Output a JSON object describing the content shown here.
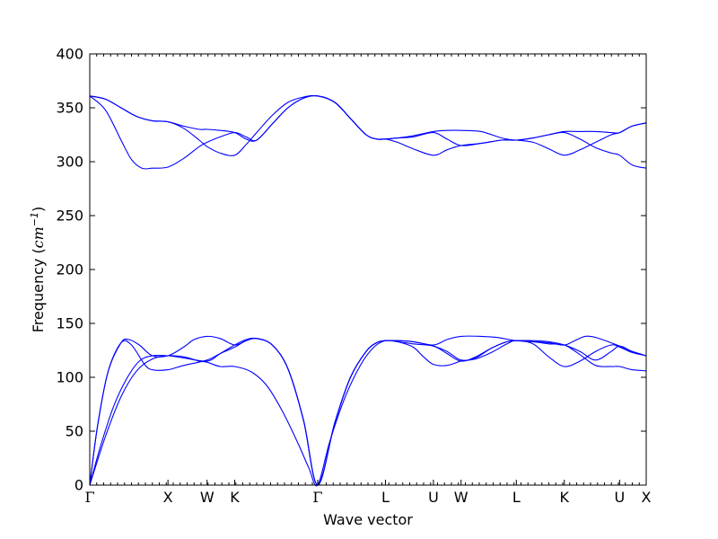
{
  "chart_data": {
    "type": "line",
    "xlabel": "Wave vector",
    "ylabel": "Frequency (cm⁻¹)",
    "ylabel_text": "Frequency (",
    "ylabel_unit": "cm",
    "ylabel_exp": "−1",
    "ylabel_close": ")",
    "ylim": [
      0,
      400
    ],
    "yticks": [
      0,
      50,
      100,
      150,
      200,
      250,
      300,
      350,
      400
    ],
    "xlim": [
      0,
      10.67
    ],
    "high_symmetry_points": [
      {
        "label": "Γ",
        "x": 0.0
      },
      {
        "label": "X",
        "x": 1.5
      },
      {
        "label": "W",
        "x": 2.25
      },
      {
        "label": "K",
        "x": 2.78
      },
      {
        "label": "Γ",
        "x": 4.37
      },
      {
        "label": "L",
        "x": 5.67
      },
      {
        "label": "U",
        "x": 6.59
      },
      {
        "label": "W",
        "x": 7.12
      },
      {
        "label": "L",
        "x": 8.18
      },
      {
        "label": "K",
        "x": 9.1
      },
      {
        "label": "U",
        "x": 10.16
      },
      {
        "label": "X",
        "x": 10.67
      }
    ],
    "series": [
      {
        "values": [
          [
            0,
            0
          ],
          [
            0.3,
            45
          ],
          [
            0.6,
            82
          ],
          [
            0.9,
            106
          ],
          [
            1.2,
            117
          ],
          [
            1.5,
            120
          ],
          [
            1.8,
            119
          ],
          [
            2.1,
            115
          ],
          [
            2.25,
            114
          ],
          [
            2.5,
            110
          ],
          [
            2.78,
            110
          ],
          [
            3.1,
            105
          ],
          [
            3.4,
            92
          ],
          [
            3.7,
            68
          ],
          [
            4.0,
            38
          ],
          [
            4.2,
            16
          ],
          [
            4.37,
            0
          ],
          [
            4.6,
            40
          ],
          [
            4.9,
            82
          ],
          [
            5.2,
            112
          ],
          [
            5.45,
            128
          ],
          [
            5.67,
            134
          ],
          [
            5.9,
            133
          ],
          [
            6.2,
            131
          ],
          [
            6.59,
            129
          ],
          [
            6.85,
            122
          ],
          [
            7.12,
            115
          ],
          [
            7.4,
            119
          ],
          [
            7.7,
            127
          ],
          [
            8.0,
            133
          ],
          [
            8.18,
            134
          ],
          [
            8.5,
            133
          ],
          [
            8.8,
            131
          ],
          [
            9.1,
            130
          ],
          [
            9.4,
            121
          ],
          [
            9.7,
            111
          ],
          [
            10.0,
            110
          ],
          [
            10.16,
            110
          ],
          [
            10.4,
            107
          ],
          [
            10.67,
            106
          ]
        ]
      },
      {
        "values": [
          [
            0,
            0
          ],
          [
            0.2,
            35
          ],
          [
            0.45,
            72
          ],
          [
            0.7,
            98
          ],
          [
            0.95,
            115
          ],
          [
            1.2,
            120
          ],
          [
            1.5,
            120
          ],
          [
            1.8,
            118
          ],
          [
            2.25,
            115
          ],
          [
            2.5,
            122
          ],
          [
            2.78,
            130
          ],
          [
            3.0,
            135
          ],
          [
            3.2,
            136
          ],
          [
            3.5,
            130
          ],
          [
            3.8,
            108
          ],
          [
            4.1,
            60
          ],
          [
            4.37,
            0
          ],
          [
            4.7,
            58
          ],
          [
            5.0,
            100
          ],
          [
            5.3,
            124
          ],
          [
            5.5,
            132
          ],
          [
            5.67,
            134
          ],
          [
            5.9,
            134
          ],
          [
            6.2,
            133
          ],
          [
            6.59,
            129
          ],
          [
            6.85,
            124
          ],
          [
            7.12,
            116
          ],
          [
            7.4,
            118
          ],
          [
            7.7,
            127
          ],
          [
            8.0,
            133
          ],
          [
            8.18,
            134
          ],
          [
            8.5,
            134
          ],
          [
            8.8,
            133
          ],
          [
            9.1,
            130
          ],
          [
            9.4,
            124
          ],
          [
            9.7,
            116
          ],
          [
            10.0,
            124
          ],
          [
            10.16,
            129
          ],
          [
            10.4,
            124
          ],
          [
            10.67,
            120
          ]
        ]
      },
      {
        "values": [
          [
            0,
            0
          ],
          [
            0.15,
            55
          ],
          [
            0.35,
            105
          ],
          [
            0.6,
            132
          ],
          [
            0.8,
            130
          ],
          [
            1.05,
            112
          ],
          [
            1.2,
            107
          ],
          [
            1.5,
            107
          ],
          [
            1.8,
            111
          ],
          [
            2.25,
            116
          ],
          [
            2.5,
            122
          ],
          [
            2.78,
            128
          ],
          [
            3.0,
            134
          ],
          [
            3.2,
            136
          ],
          [
            3.5,
            130
          ],
          [
            3.8,
            108
          ],
          [
            4.1,
            60
          ],
          [
            4.37,
            0
          ],
          [
            4.7,
            58
          ],
          [
            5.0,
            100
          ],
          [
            5.3,
            124
          ],
          [
            5.5,
            132
          ],
          [
            5.67,
            134
          ],
          [
            5.9,
            133
          ],
          [
            6.2,
            128
          ],
          [
            6.4,
            119
          ],
          [
            6.59,
            112
          ],
          [
            6.85,
            111
          ],
          [
            7.12,
            115
          ],
          [
            7.4,
            117
          ],
          [
            7.7,
            123
          ],
          [
            8.0,
            131
          ],
          [
            8.18,
            134
          ],
          [
            8.5,
            131
          ],
          [
            8.8,
            119
          ],
          [
            9.1,
            110
          ],
          [
            9.4,
            115
          ],
          [
            9.7,
            124
          ],
          [
            10.0,
            130
          ],
          [
            10.16,
            128
          ],
          [
            10.4,
            123
          ],
          [
            10.67,
            120
          ]
        ]
      },
      {
        "values": [
          [
            0,
            0
          ],
          [
            0.15,
            55
          ],
          [
            0.35,
            105
          ],
          [
            0.6,
            132
          ],
          [
            0.75,
            135
          ],
          [
            0.95,
            130
          ],
          [
            1.2,
            120
          ],
          [
            1.5,
            120
          ],
          [
            1.8,
            128
          ],
          [
            2.0,
            135
          ],
          [
            2.25,
            138
          ],
          [
            2.5,
            136
          ],
          [
            2.78,
            130
          ],
          [
            3.0,
            134
          ],
          [
            3.2,
            136
          ],
          [
            3.5,
            130
          ],
          [
            3.8,
            108
          ],
          [
            4.1,
            60
          ],
          [
            4.37,
            0
          ],
          [
            4.7,
            58
          ],
          [
            5.0,
            100
          ],
          [
            5.3,
            124
          ],
          [
            5.5,
            132
          ],
          [
            5.67,
            134
          ],
          [
            5.9,
            134
          ],
          [
            6.2,
            133
          ],
          [
            6.59,
            130
          ],
          [
            6.85,
            135
          ],
          [
            7.12,
            138
          ],
          [
            7.5,
            138
          ],
          [
            7.8,
            137
          ],
          [
            8.18,
            134
          ],
          [
            8.5,
            133
          ],
          [
            8.8,
            132
          ],
          [
            9.1,
            130
          ],
          [
            9.3,
            134
          ],
          [
            9.5,
            138
          ],
          [
            9.7,
            137
          ],
          [
            10.0,
            132
          ],
          [
            10.16,
            129
          ],
          [
            10.4,
            124
          ],
          [
            10.67,
            120
          ]
        ]
      },
      {
        "values": [
          [
            0,
            361
          ],
          [
            0.3,
            348
          ],
          [
            0.6,
            320
          ],
          [
            0.8,
            302
          ],
          [
            1.0,
            294
          ],
          [
            1.2,
            294
          ],
          [
            1.5,
            295
          ],
          [
            1.8,
            303
          ],
          [
            2.1,
            314
          ],
          [
            2.25,
            318
          ],
          [
            2.5,
            323
          ],
          [
            2.78,
            327
          ],
          [
            3.0,
            323
          ],
          [
            3.2,
            320
          ],
          [
            3.5,
            335
          ],
          [
            3.8,
            350
          ],
          [
            4.1,
            359
          ],
          [
            4.37,
            361
          ],
          [
            4.7,
            355
          ],
          [
            5.0,
            340
          ],
          [
            5.3,
            325
          ],
          [
            5.5,
            321
          ],
          [
            5.67,
            321
          ],
          [
            5.9,
            322
          ],
          [
            6.2,
            323
          ],
          [
            6.59,
            327
          ],
          [
            6.85,
            321
          ],
          [
            7.12,
            315
          ],
          [
            7.5,
            317
          ],
          [
            7.9,
            320
          ],
          [
            8.18,
            320
          ],
          [
            8.5,
            322
          ],
          [
            8.8,
            325
          ],
          [
            9.1,
            327
          ],
          [
            9.4,
            321
          ],
          [
            9.7,
            313
          ],
          [
            10.0,
            308
          ],
          [
            10.16,
            306
          ],
          [
            10.4,
            297
          ],
          [
            10.67,
            294
          ]
        ]
      },
      {
        "values": [
          [
            0,
            361
          ],
          [
            0.3,
            358
          ],
          [
            0.6,
            350
          ],
          [
            0.9,
            342
          ],
          [
            1.2,
            338
          ],
          [
            1.5,
            337
          ],
          [
            1.8,
            331
          ],
          [
            2.1,
            320
          ],
          [
            2.25,
            314
          ],
          [
            2.5,
            308
          ],
          [
            2.78,
            306
          ],
          [
            3.0,
            316
          ],
          [
            3.2,
            327
          ],
          [
            3.5,
            343
          ],
          [
            3.8,
            355
          ],
          [
            4.1,
            360
          ],
          [
            4.37,
            361
          ],
          [
            4.7,
            355
          ],
          [
            5.0,
            340
          ],
          [
            5.3,
            325
          ],
          [
            5.5,
            321
          ],
          [
            5.67,
            321
          ],
          [
            5.9,
            318
          ],
          [
            6.2,
            312
          ],
          [
            6.59,
            306
          ],
          [
            6.85,
            311
          ],
          [
            7.12,
            315
          ],
          [
            7.5,
            317
          ],
          [
            7.9,
            320
          ],
          [
            8.18,
            320
          ],
          [
            8.5,
            318
          ],
          [
            8.8,
            312
          ],
          [
            9.1,
            306
          ],
          [
            9.4,
            311
          ],
          [
            9.7,
            318
          ],
          [
            10.0,
            325
          ],
          [
            10.16,
            327
          ],
          [
            10.4,
            333
          ],
          [
            10.67,
            336
          ]
        ]
      },
      {
        "values": [
          [
            0,
            361
          ],
          [
            0.3,
            358
          ],
          [
            0.6,
            350
          ],
          [
            0.9,
            342
          ],
          [
            1.2,
            338
          ],
          [
            1.5,
            337
          ],
          [
            1.8,
            333
          ],
          [
            2.1,
            330
          ],
          [
            2.25,
            330
          ],
          [
            2.5,
            329
          ],
          [
            2.78,
            327
          ],
          [
            3.0,
            321
          ],
          [
            3.2,
            320
          ],
          [
            3.5,
            335
          ],
          [
            3.8,
            350
          ],
          [
            4.1,
            359
          ],
          [
            4.37,
            361
          ],
          [
            4.7,
            355
          ],
          [
            5.0,
            340
          ],
          [
            5.3,
            325
          ],
          [
            5.5,
            321
          ],
          [
            5.67,
            321
          ],
          [
            5.9,
            322
          ],
          [
            6.2,
            324
          ],
          [
            6.59,
            328
          ],
          [
            6.85,
            329
          ],
          [
            7.12,
            329
          ],
          [
            7.5,
            328
          ],
          [
            7.9,
            322
          ],
          [
            8.18,
            320
          ],
          [
            8.5,
            322
          ],
          [
            8.8,
            325
          ],
          [
            9.1,
            328
          ],
          [
            9.4,
            328
          ],
          [
            9.7,
            328
          ],
          [
            10.0,
            327
          ],
          [
            10.16,
            327
          ],
          [
            10.4,
            333
          ],
          [
            10.67,
            336
          ]
        ]
      }
    ]
  }
}
